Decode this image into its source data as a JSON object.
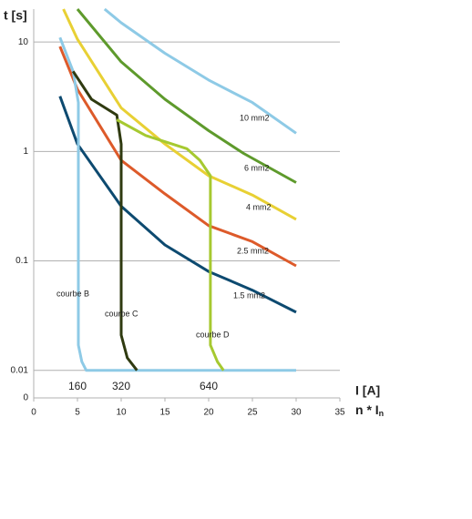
{
  "chart_data": {
    "type": "line",
    "y_label": "t [s]",
    "x_label": "I [A]",
    "x_label2": {
      "main": "n * I",
      "sub": "n"
    },
    "log_y": true,
    "grid": true,
    "xlim": [
      0,
      35
    ],
    "xticks": [
      0,
      5,
      10,
      15,
      20,
      25,
      30,
      35
    ],
    "ylim": [
      0.0056,
      20
    ],
    "yticks": [
      {
        "value": 0.0056,
        "label": "0"
      },
      0.01,
      0.1,
      1,
      10
    ],
    "annotations": [
      {
        "text": "160",
        "x": 5
      },
      {
        "text": "320",
        "x": 10
      },
      {
        "text": "640",
        "x": 20
      }
    ],
    "series": [
      {
        "name": "10 mm2",
        "color": "#8ecae6",
        "x": [
          8.1,
          10,
          15,
          20,
          25,
          30
        ],
        "values": [
          20,
          15,
          7.9,
          4.5,
          2.8,
          1.47
        ]
      },
      {
        "name": "6 mm2",
        "color": "#5e9a2c",
        "x": [
          5,
          10,
          15,
          20,
          24,
          30
        ],
        "values": [
          20,
          6.6,
          3.0,
          1.55,
          0.96,
          0.52
        ]
      },
      {
        "name": "4 mm2",
        "color": "#e8d034",
        "x": [
          3.4,
          5,
          10,
          15,
          20,
          25,
          30
        ],
        "values": [
          20,
          10.6,
          2.5,
          1.17,
          0.6,
          0.4,
          0.24
        ]
      },
      {
        "name": "2.5 mm2",
        "color": "#dd5a2a",
        "x": [
          3,
          5,
          10,
          15,
          20,
          25,
          30
        ],
        "values": [
          9.1,
          3.7,
          0.83,
          0.41,
          0.21,
          0.15,
          0.09
        ]
      },
      {
        "name": "1.5 mm2",
        "color": "#0d4a70",
        "x": [
          3,
          5,
          10,
          15,
          20,
          25,
          30
        ],
        "values": [
          3.2,
          1.17,
          0.316,
          0.14,
          0.08,
          0.054,
          0.034
        ]
      },
      {
        "name": "courbe B",
        "color": "#8ecae6",
        "x": [
          3,
          4.5,
          5.1,
          5.1,
          5.5,
          6,
          30
        ],
        "values": [
          11,
          5.4,
          2.8,
          0.017,
          0.012,
          0.01,
          0.01
        ]
      },
      {
        "name": "courbe C",
        "color": "#2f3a10",
        "x": [
          4.5,
          6.6,
          9.5,
          10,
          10,
          10.7,
          11.8
        ],
        "values": [
          5.4,
          3.0,
          2.15,
          1.17,
          0.021,
          0.013,
          0.01
        ]
      },
      {
        "name": "courbe D",
        "color": "#a6c930",
        "x": [
          9.5,
          12.8,
          17.5,
          19,
          20.2,
          20.2,
          21,
          21.7
        ],
        "values": [
          1.95,
          1.4,
          1.06,
          0.83,
          0.6,
          0.017,
          0.012,
          0.01
        ]
      }
    ]
  }
}
